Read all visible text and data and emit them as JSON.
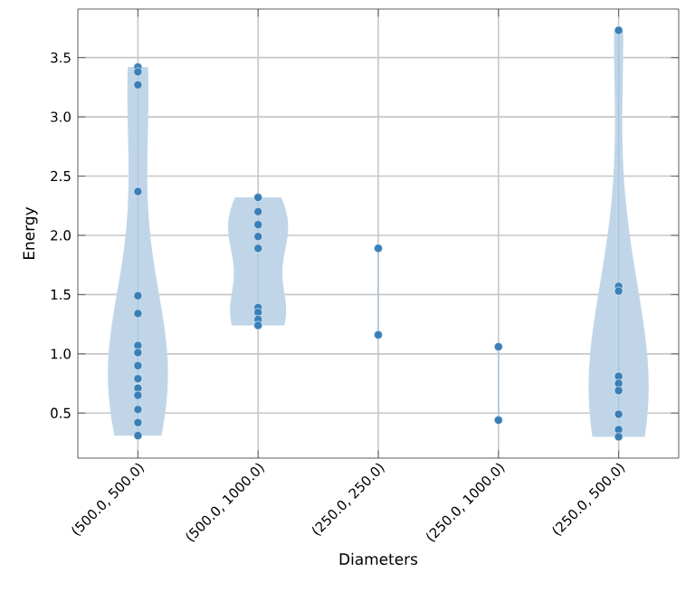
{
  "chart_data": {
    "type": "scatter",
    "xlabel": "Diameters",
    "ylabel": "Energy",
    "categories": [
      "(500.0, 500.0)",
      "(500.0, 1000.0)",
      "(250.0, 250.0)",
      "(250.0, 1000.0)",
      "(250.0, 500.0)"
    ],
    "series": [
      {
        "color": "#3a7fb7",
        "x": [
          "(500.0, 500.0)",
          "(500.0, 500.0)",
          "(500.0, 500.0)",
          "(500.0, 500.0)",
          "(500.0, 500.0)",
          "(500.0, 500.0)",
          "(500.0, 500.0)",
          "(500.0, 500.0)",
          "(500.0, 500.0)",
          "(500.0, 500.0)",
          "(500.0, 500.0)",
          "(500.0, 500.0)",
          "(500.0, 500.0)",
          "(500.0, 500.0)",
          "(500.0, 500.0)",
          "(500.0, 1000.0)",
          "(500.0, 1000.0)",
          "(500.0, 1000.0)",
          "(500.0, 1000.0)",
          "(500.0, 1000.0)",
          "(500.0, 1000.0)",
          "(500.0, 1000.0)",
          "(500.0, 1000.0)",
          "(500.0, 1000.0)",
          "(250.0, 250.0)",
          "(250.0, 250.0)",
          "(250.0, 1000.0)",
          "(250.0, 1000.0)",
          "(250.0, 500.0)",
          "(250.0, 500.0)",
          "(250.0, 500.0)",
          "(250.0, 500.0)",
          "(250.0, 500.0)",
          "(250.0, 500.0)",
          "(250.0, 500.0)",
          "(250.0, 500.0)",
          "(250.0, 500.0)"
        ],
        "values": [
          3.42,
          3.38,
          3.27,
          2.37,
          1.49,
          1.34,
          1.07,
          1.01,
          0.9,
          0.79,
          0.71,
          0.65,
          0.53,
          0.42,
          0.31,
          2.32,
          2.2,
          2.09,
          1.99,
          1.89,
          1.39,
          1.35,
          1.29,
          1.24,
          1.89,
          1.16,
          1.06,
          0.44,
          3.73,
          1.57,
          1.53,
          0.81,
          0.75,
          0.69,
          0.49,
          0.36,
          0.3
        ]
      }
    ],
    "ylim": [
      0.12,
      3.91
    ],
    "yticks": [
      0.5,
      {
        "value": 1,
        "label": "1.0"
      },
      1.5,
      {
        "value": 2,
        "label": "2.0"
      },
      2.5,
      {
        "value": 3,
        "label": "3.0"
      },
      3.5
    ],
    "grid": true,
    "marker": "circle"
  }
}
